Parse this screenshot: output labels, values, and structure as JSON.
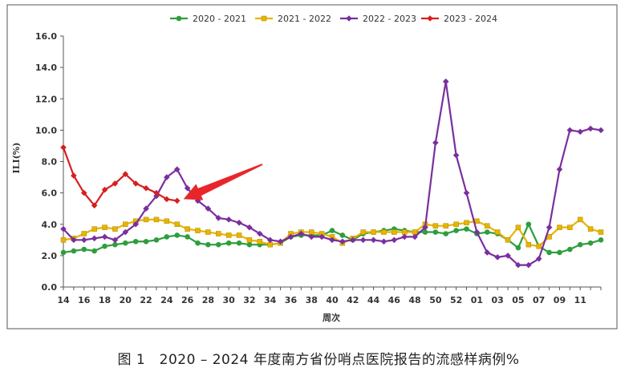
{
  "caption": "图 1　2020 – 2024 年度南方省份哨点医院报告的流感样病例%",
  "chart_data": {
    "type": "line",
    "title": "",
    "xlabel": "周次",
    "ylabel": "ILI(%)",
    "ylim": [
      0,
      16
    ],
    "yticks": [
      "0.0",
      "2.0",
      "4.0",
      "6.0",
      "8.0",
      "10.0",
      "12.0",
      "14.0",
      "16.0"
    ],
    "grid": false,
    "legend_position": "top",
    "x": [
      "14",
      "15",
      "16",
      "17",
      "18",
      "19",
      "20",
      "21",
      "22",
      "23",
      "24",
      "25",
      "26",
      "27",
      "28",
      "29",
      "30",
      "31",
      "32",
      "33",
      "34",
      "35",
      "36",
      "37",
      "38",
      "39",
      "40",
      "41",
      "42",
      "43",
      "44",
      "45",
      "46",
      "47",
      "48",
      "49",
      "50",
      "51",
      "52",
      "53",
      "01",
      "02",
      "03",
      "04",
      "05",
      "06",
      "07",
      "08",
      "09",
      "10",
      "11",
      "12",
      "13"
    ],
    "xtick_labels": [
      "14",
      "16",
      "18",
      "20",
      "22",
      "24",
      "26",
      "28",
      "30",
      "32",
      "34",
      "36",
      "38",
      "40",
      "42",
      "44",
      "46",
      "48",
      "50",
      "52",
      "01",
      "03",
      "05",
      "07",
      "09",
      "11"
    ],
    "series": [
      {
        "name": "2020 - 2021",
        "color": "#2e9e3e",
        "marker": "circle",
        "values": [
          2.2,
          2.3,
          2.4,
          2.3,
          2.6,
          2.7,
          2.8,
          2.9,
          2.9,
          3.0,
          3.2,
          3.3,
          3.2,
          2.8,
          2.7,
          2.7,
          2.8,
          2.8,
          2.7,
          2.7,
          2.7,
          2.8,
          3.2,
          3.3,
          3.3,
          3.3,
          3.6,
          3.3,
          3.0,
          3.4,
          3.5,
          3.6,
          3.7,
          3.6,
          3.5,
          3.5,
          3.5,
          3.4,
          3.6,
          3.7,
          3.4,
          3.5,
          3.4,
          3.0,
          2.5,
          4.0,
          2.6,
          2.2,
          2.2,
          2.4,
          2.7,
          2.8,
          3.0
        ]
      },
      {
        "name": "2021 - 2022",
        "color": "#e8b400",
        "marker": "square",
        "values": [
          3.0,
          3.1,
          3.4,
          3.7,
          3.8,
          3.7,
          4.0,
          4.2,
          4.3,
          4.3,
          4.2,
          4.0,
          3.7,
          3.6,
          3.5,
          3.4,
          3.3,
          3.3,
          3.0,
          2.9,
          2.7,
          2.8,
          3.4,
          3.5,
          3.5,
          3.4,
          3.2,
          2.8,
          3.1,
          3.5,
          3.5,
          3.5,
          3.5,
          3.5,
          3.5,
          4.0,
          3.9,
          3.9,
          4.0,
          4.1,
          4.2,
          3.9,
          3.5,
          3.0,
          3.8,
          2.7,
          2.6,
          3.2,
          3.8,
          3.8,
          4.3,
          3.7,
          3.5
        ]
      },
      {
        "name": "2022 - 2023",
        "color": "#7a2f9e",
        "marker": "diamond",
        "values": [
          3.7,
          3.0,
          3.0,
          3.1,
          3.2,
          3.0,
          3.5,
          4.0,
          5.0,
          5.8,
          7.0,
          7.5,
          6.3,
          5.5,
          5.0,
          4.4,
          4.3,
          4.1,
          3.8,
          3.4,
          3.0,
          2.9,
          3.2,
          3.4,
          3.2,
          3.2,
          3.0,
          2.9,
          3.0,
          3.0,
          3.0,
          2.9,
          3.0,
          3.2,
          3.2,
          3.8,
          9.2,
          13.1,
          8.4,
          6.0,
          3.5,
          2.2,
          1.9,
          2.0,
          1.4,
          1.4,
          1.8,
          3.8,
          7.5,
          10.0,
          9.9,
          10.1,
          10.0
        ]
      },
      {
        "name": "2023 - 2024",
        "color": "#d61f1f",
        "marker": "diamond",
        "values": [
          8.9,
          7.1,
          6.0,
          5.2,
          6.2,
          6.6,
          7.2,
          6.6,
          6.3,
          6.0,
          5.6,
          5.5,
          null,
          null,
          null,
          null,
          null,
          null,
          null,
          null,
          null,
          null,
          null,
          null,
          null,
          null,
          null,
          null,
          null,
          null,
          null,
          null,
          null,
          null,
          null,
          null,
          null,
          null,
          null,
          null,
          null,
          null,
          null,
          null,
          null,
          null,
          null,
          null,
          null,
          null,
          null,
          null,
          null
        ]
      }
    ],
    "annotation": {
      "type": "arrow",
      "color": "#e8262a",
      "target_x": "25",
      "target_y": 5.5
    }
  }
}
